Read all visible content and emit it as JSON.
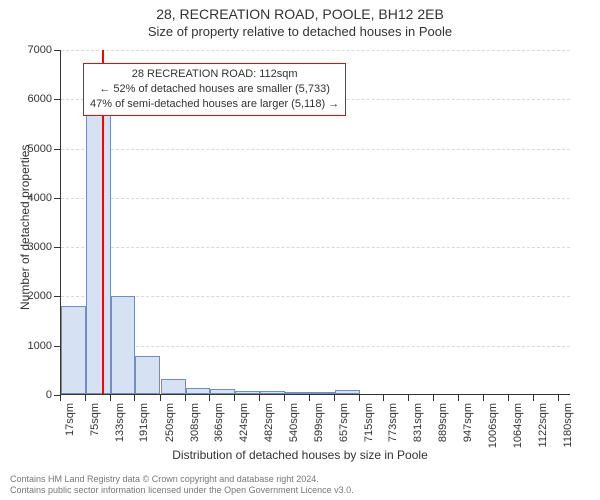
{
  "title_main": "28, RECREATION ROAD, POOLE, BH12 2EB",
  "title_sub": "Size of property relative to detached houses in Poole",
  "chart": {
    "type": "histogram",
    "background_color": "#ffffff",
    "bar_fill": "#d6e2f3",
    "bar_border": "#6f8fc4",
    "grid_color": "#d9d9d9",
    "axis_color": "#333333",
    "marker_color": "#ff0000",
    "ylim": [
      0,
      7000
    ],
    "ytick_step": 1000,
    "yticks": [
      0,
      1000,
      2000,
      3000,
      4000,
      5000,
      6000,
      7000
    ],
    "ylabel": "Number of detached properties",
    "xlabel": "Distribution of detached houses by size in Poole",
    "xlim_sqm": [
      17,
      1209
    ],
    "xticks_sqm": [
      17,
      75,
      133,
      191,
      250,
      308,
      366,
      424,
      482,
      540,
      599,
      657,
      715,
      773,
      831,
      889,
      947,
      1006,
      1064,
      1122,
      1180
    ],
    "xtick_labels": [
      "17sqm",
      "75sqm",
      "133sqm",
      "191sqm",
      "250sqm",
      "308sqm",
      "366sqm",
      "424sqm",
      "482sqm",
      "540sqm",
      "599sqm",
      "657sqm",
      "715sqm",
      "773sqm",
      "831sqm",
      "889sqm",
      "947sqm",
      "1006sqm",
      "1064sqm",
      "1122sqm",
      "1180sqm"
    ],
    "bars": [
      {
        "x_sqm": 17,
        "value": 1780
      },
      {
        "x_sqm": 75,
        "value": 5700
      },
      {
        "x_sqm": 133,
        "value": 1980
      },
      {
        "x_sqm": 191,
        "value": 780
      },
      {
        "x_sqm": 250,
        "value": 310
      },
      {
        "x_sqm": 308,
        "value": 130
      },
      {
        "x_sqm": 366,
        "value": 95
      },
      {
        "x_sqm": 424,
        "value": 70
      },
      {
        "x_sqm": 482,
        "value": 58
      },
      {
        "x_sqm": 540,
        "value": 50
      },
      {
        "x_sqm": 599,
        "value": 20
      },
      {
        "x_sqm": 657,
        "value": 90
      },
      {
        "x_sqm": 715,
        "value": 0
      },
      {
        "x_sqm": 773,
        "value": 0
      },
      {
        "x_sqm": 831,
        "value": 0
      },
      {
        "x_sqm": 889,
        "value": 0
      },
      {
        "x_sqm": 947,
        "value": 0
      },
      {
        "x_sqm": 1006,
        "value": 0
      },
      {
        "x_sqm": 1064,
        "value": 0
      },
      {
        "x_sqm": 1122,
        "value": 0
      }
    ],
    "marker_sqm": 112,
    "annotation": {
      "line1": "28 RECREATION ROAD: 112sqm",
      "line2": "← 52% of detached houses are smaller (5,733)",
      "line3": "47% of semi-detached houses are larger (5,118) →",
      "border_color": "#ff0000",
      "background": "#ffffff",
      "fontsize": 11
    },
    "title_fontsize": 14,
    "subtitle_fontsize": 13,
    "label_fontsize": 12,
    "tick_fontsize": 11
  },
  "footer": {
    "line1": "Contains HM Land Registry data © Crown copyright and database right 2024.",
    "line2": "Contains public sector information licensed under the Open Government Licence v3.0.",
    "color": "#777777",
    "fontsize": 9
  }
}
